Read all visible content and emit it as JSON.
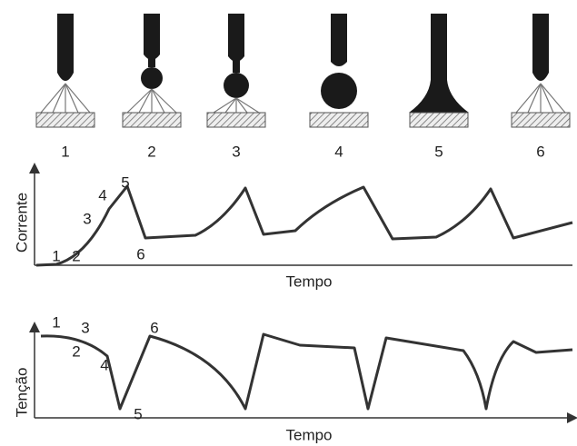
{
  "stages": [
    "1",
    "2",
    "3",
    "4",
    "5",
    "6"
  ],
  "current_plot": {
    "y_label": "Corrente",
    "x_label": "Tempo",
    "points": [
      "1",
      "2",
      "3",
      "4",
      "5",
      "6"
    ]
  },
  "voltage_plot": {
    "y_label": "Tenção",
    "x_label": "Tempo",
    "points": [
      "1",
      "2",
      "3",
      "4",
      "5",
      "6"
    ]
  }
}
